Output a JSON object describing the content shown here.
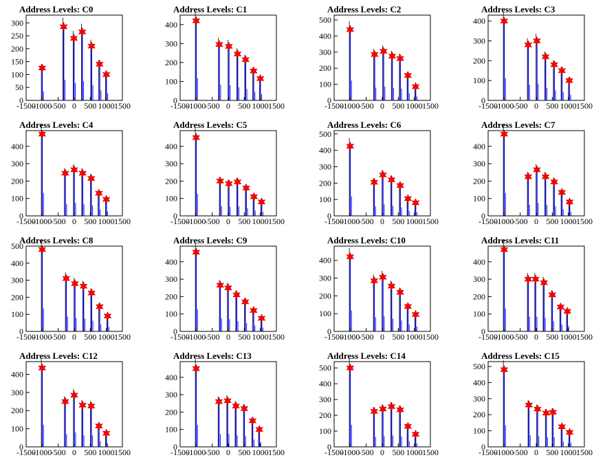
{
  "colors": {
    "bar": "#0000ff",
    "outline": "#000000",
    "marker": "#ff0000",
    "frame": "#000000"
  },
  "chart_data": [
    {
      "type": "bar",
      "title": "Address Levels: C0",
      "xlim": [
        -1500,
        1500
      ],
      "ylim": [
        0,
        330
      ],
      "xticks": [
        "-1500",
        "-1000",
        "-500",
        "0",
        "500",
        "1000",
        "1500"
      ],
      "yticks": [
        0,
        50,
        100,
        150,
        200,
        250,
        300
      ],
      "peaks": [
        {
          "x": -1000,
          "y": 125
        },
        {
          "x": -330,
          "y": 285
        },
        {
          "x": -10,
          "y": 240
        },
        {
          "x": 250,
          "y": 265
        },
        {
          "x": 540,
          "y": 210
        },
        {
          "x": 790,
          "y": 140
        },
        {
          "x": 1000,
          "y": 100
        }
      ]
    },
    {
      "type": "bar",
      "title": "Address Levels: C1",
      "xlim": [
        -1500,
        1500
      ],
      "ylim": [
        0,
        450
      ],
      "xticks": [
        "-1500",
        "-1000",
        "-500",
        "0",
        "500",
        "1000",
        "1500"
      ],
      "yticks": [
        0,
        100,
        200,
        300,
        400
      ],
      "peaks": [
        {
          "x": -1000,
          "y": 420
        },
        {
          "x": -280,
          "y": 295
        },
        {
          "x": 20,
          "y": 285
        },
        {
          "x": 290,
          "y": 245
        },
        {
          "x": 540,
          "y": 215
        },
        {
          "x": 790,
          "y": 155
        },
        {
          "x": 1000,
          "y": 115
        }
      ]
    },
    {
      "type": "bar",
      "title": "Address Levels: C2",
      "xlim": [
        -1500,
        1500
      ],
      "ylim": [
        0,
        530
      ],
      "xticks": [
        "-1500",
        "-1000",
        "-500",
        "0",
        "500",
        "1000",
        "1500"
      ],
      "yticks": [
        0,
        100,
        200,
        300,
        400,
        500
      ],
      "peaks": [
        {
          "x": -1000,
          "y": 440
        },
        {
          "x": -240,
          "y": 285
        },
        {
          "x": 40,
          "y": 305
        },
        {
          "x": 310,
          "y": 275
        },
        {
          "x": 560,
          "y": 260
        },
        {
          "x": 800,
          "y": 155
        },
        {
          "x": 1040,
          "y": 85
        }
      ]
    },
    {
      "type": "bar",
      "title": "Address Levels: C3",
      "xlim": [
        -1500,
        1500
      ],
      "ylim": [
        0,
        430
      ],
      "xticks": [
        "-1500",
        "-1000",
        "-500",
        "0",
        "500",
        "1000",
        "1500"
      ],
      "yticks": [
        0,
        100,
        200,
        300,
        400
      ],
      "peaks": [
        {
          "x": -1000,
          "y": 400
        },
        {
          "x": -250,
          "y": 280
        },
        {
          "x": 20,
          "y": 300
        },
        {
          "x": 290,
          "y": 220
        },
        {
          "x": 560,
          "y": 180
        },
        {
          "x": 800,
          "y": 150
        },
        {
          "x": 1030,
          "y": 100
        }
      ]
    },
    {
      "type": "bar",
      "title": "Address Levels: C4",
      "xlim": [
        -1500,
        1500
      ],
      "ylim": [
        0,
        490
      ],
      "xticks": [
        "-1500",
        "-1000",
        "-500",
        "0",
        "500",
        "1000",
        "1500"
      ],
      "yticks": [
        0,
        100,
        200,
        300,
        400
      ],
      "peaks": [
        {
          "x": -1000,
          "y": 470
        },
        {
          "x": -280,
          "y": 245
        },
        {
          "x": 0,
          "y": 265
        },
        {
          "x": 260,
          "y": 245
        },
        {
          "x": 530,
          "y": 215
        },
        {
          "x": 770,
          "y": 130
        },
        {
          "x": 1000,
          "y": 95
        }
      ]
    },
    {
      "type": "bar",
      "title": "Address Levels: C5",
      "xlim": [
        -1500,
        1500
      ],
      "ylim": [
        0,
        490
      ],
      "xticks": [
        "-1500",
        "-1000",
        "-500",
        "0",
        "500",
        "1000",
        "1500"
      ],
      "yticks": [
        0,
        100,
        200,
        300,
        400
      ],
      "peaks": [
        {
          "x": -1000,
          "y": 450
        },
        {
          "x": -250,
          "y": 200
        },
        {
          "x": 20,
          "y": 185
        },
        {
          "x": 290,
          "y": 195
        },
        {
          "x": 560,
          "y": 160
        },
        {
          "x": 800,
          "y": 110
        },
        {
          "x": 1040,
          "y": 80
        }
      ]
    },
    {
      "type": "bar",
      "title": "Address Levels: C6",
      "xlim": [
        -1500,
        1500
      ],
      "ylim": [
        0,
        520
      ],
      "xticks": [
        "-1500",
        "-1000",
        "-500",
        "0",
        "500",
        "1000",
        "1500"
      ],
      "yticks": [
        0,
        100,
        200,
        300,
        400,
        500
      ],
      "peaks": [
        {
          "x": -1000,
          "y": 425
        },
        {
          "x": -250,
          "y": 205
        },
        {
          "x": 20,
          "y": 250
        },
        {
          "x": 290,
          "y": 220
        },
        {
          "x": 560,
          "y": 185
        },
        {
          "x": 800,
          "y": 105
        },
        {
          "x": 1040,
          "y": 80
        }
      ]
    },
    {
      "type": "bar",
      "title": "Address Levels: C7",
      "xlim": [
        -1500,
        1500
      ],
      "ylim": [
        0,
        490
      ],
      "xticks": [
        "-1500",
        "-1000",
        "-500",
        "0",
        "500",
        "1000",
        "1500"
      ],
      "yticks": [
        0,
        100,
        200,
        300,
        400
      ],
      "peaks": [
        {
          "x": -1000,
          "y": 470
        },
        {
          "x": -250,
          "y": 225
        },
        {
          "x": 20,
          "y": 265
        },
        {
          "x": 290,
          "y": 225
        },
        {
          "x": 560,
          "y": 195
        },
        {
          "x": 800,
          "y": 135
        },
        {
          "x": 1040,
          "y": 80
        }
      ]
    },
    {
      "type": "bar",
      "title": "Address Levels: C8",
      "xlim": [
        -1500,
        1500
      ],
      "ylim": [
        0,
        500
      ],
      "xticks": [
        "-1500",
        "-1000",
        "-500",
        "0",
        "500",
        "1000",
        "1500"
      ],
      "yticks": [
        0,
        100,
        200,
        300,
        400,
        500
      ],
      "peaks": [
        {
          "x": -1000,
          "y": 480
        },
        {
          "x": -250,
          "y": 310
        },
        {
          "x": 20,
          "y": 280
        },
        {
          "x": 290,
          "y": 265
        },
        {
          "x": 540,
          "y": 225
        },
        {
          "x": 790,
          "y": 145
        },
        {
          "x": 1040,
          "y": 90
        }
      ]
    },
    {
      "type": "bar",
      "title": "Address Levels: C9",
      "xlim": [
        -1500,
        1500
      ],
      "ylim": [
        0,
        490
      ],
      "xticks": [
        "-1500",
        "-1000",
        "-500",
        "0",
        "500",
        "1000",
        "1500"
      ],
      "yticks": [
        0,
        100,
        200,
        300,
        400
      ],
      "peaks": [
        {
          "x": -1000,
          "y": 455
        },
        {
          "x": -250,
          "y": 265
        },
        {
          "x": 0,
          "y": 250
        },
        {
          "x": 260,
          "y": 210
        },
        {
          "x": 530,
          "y": 170
        },
        {
          "x": 790,
          "y": 120
        },
        {
          "x": 1040,
          "y": 75
        }
      ]
    },
    {
      "type": "bar",
      "title": "Address Levels: C10",
      "xlim": [
        -1500,
        1500
      ],
      "ylim": [
        0,
        480
      ],
      "xticks": [
        "-1500",
        "-1000",
        "-500",
        "0",
        "500",
        "1000",
        "1500"
      ],
      "yticks": [
        0,
        100,
        200,
        300,
        400
      ],
      "peaks": [
        {
          "x": -1000,
          "y": 420
        },
        {
          "x": -250,
          "y": 285
        },
        {
          "x": 20,
          "y": 305
        },
        {
          "x": 290,
          "y": 255
        },
        {
          "x": 560,
          "y": 220
        },
        {
          "x": 800,
          "y": 140
        },
        {
          "x": 1040,
          "y": 95
        }
      ]
    },
    {
      "type": "bar",
      "title": "Address Levels: C11",
      "xlim": [
        -1500,
        1500
      ],
      "ylim": [
        0,
        490
      ],
      "xticks": [
        "-1500",
        "-1000",
        "-500",
        "0",
        "500",
        "1000",
        "1500"
      ],
      "yticks": [
        0,
        100,
        200,
        300,
        400
      ],
      "peaks": [
        {
          "x": -1000,
          "y": 470
        },
        {
          "x": -250,
          "y": 300
        },
        {
          "x": -20,
          "y": 300
        },
        {
          "x": 240,
          "y": 280
        },
        {
          "x": 500,
          "y": 210
        },
        {
          "x": 760,
          "y": 140
        },
        {
          "x": 970,
          "y": 115
        }
      ]
    },
    {
      "type": "bar",
      "title": "Address Levels: C12",
      "xlim": [
        -1500,
        1500
      ],
      "ylim": [
        0,
        470
      ],
      "xticks": [
        "-1500",
        "-1000",
        "-500",
        "0",
        "500",
        "1000",
        "1500"
      ],
      "yticks": [
        0,
        100,
        200,
        300,
        400
      ],
      "peaks": [
        {
          "x": -1000,
          "y": 435
        },
        {
          "x": -280,
          "y": 250
        },
        {
          "x": 0,
          "y": 285
        },
        {
          "x": 260,
          "y": 230
        },
        {
          "x": 530,
          "y": 225
        },
        {
          "x": 770,
          "y": 115
        },
        {
          "x": 1000,
          "y": 75
        }
      ]
    },
    {
      "type": "bar",
      "title": "Address Levels: C13",
      "xlim": [
        -1500,
        1500
      ],
      "ylim": [
        0,
        490
      ],
      "xticks": [
        "-1500",
        "-1000",
        "-500",
        "0",
        "500",
        "1000",
        "1500"
      ],
      "yticks": [
        0,
        100,
        200,
        300,
        400
      ],
      "peaks": [
        {
          "x": -1000,
          "y": 450
        },
        {
          "x": -290,
          "y": 260
        },
        {
          "x": -20,
          "y": 265
        },
        {
          "x": 240,
          "y": 235
        },
        {
          "x": 500,
          "y": 220
        },
        {
          "x": 760,
          "y": 150
        },
        {
          "x": 970,
          "y": 100
        }
      ]
    },
    {
      "type": "bar",
      "title": "Address Levels: C14",
      "xlim": [
        -1500,
        1500
      ],
      "ylim": [
        0,
        540
      ],
      "xticks": [
        "-1500",
        "-1000",
        "-500",
        "0",
        "500",
        "1000",
        "1500"
      ],
      "yticks": [
        0,
        100,
        200,
        300,
        400,
        500
      ],
      "peaks": [
        {
          "x": -1000,
          "y": 500
        },
        {
          "x": -250,
          "y": 225
        },
        {
          "x": 20,
          "y": 240
        },
        {
          "x": 290,
          "y": 255
        },
        {
          "x": 560,
          "y": 235
        },
        {
          "x": 800,
          "y": 130
        },
        {
          "x": 1040,
          "y": 80
        }
      ]
    },
    {
      "type": "bar",
      "title": "Address Levels: C15",
      "xlim": [
        -1500,
        1500
      ],
      "ylim": [
        0,
        530
      ],
      "xticks": [
        "-1500",
        "-1000",
        "-500",
        "0",
        "500",
        "1000",
        "1500"
      ],
      "yticks": [
        0,
        100,
        200,
        300,
        400,
        500
      ],
      "peaks": [
        {
          "x": -1000,
          "y": 480
        },
        {
          "x": -230,
          "y": 260
        },
        {
          "x": 40,
          "y": 235
        },
        {
          "x": 310,
          "y": 210
        },
        {
          "x": 520,
          "y": 215
        },
        {
          "x": 800,
          "y": 125
        },
        {
          "x": 1040,
          "y": 90
        }
      ]
    }
  ]
}
